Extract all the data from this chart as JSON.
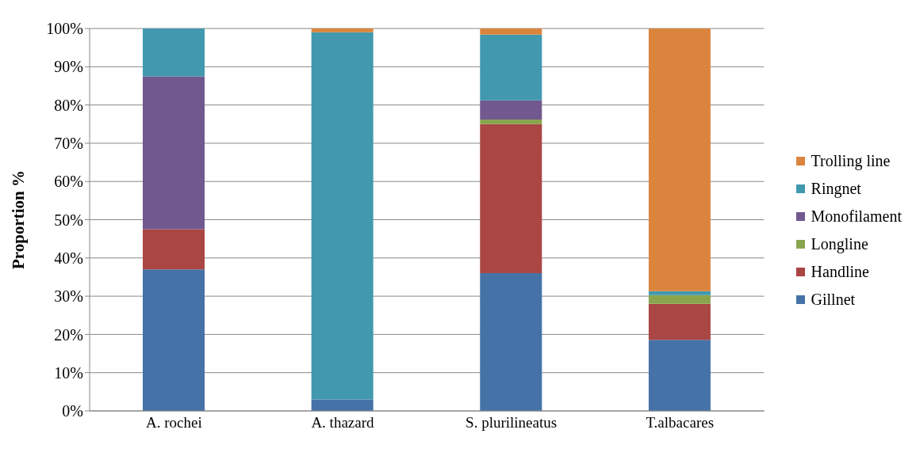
{
  "chart_data": {
    "type": "bar",
    "stacked": true,
    "ylabel": "Proportion %",
    "categories": [
      "A. rochei",
      "A. thazard",
      "S. plurilineatus",
      "T.albacares"
    ],
    "series": [
      {
        "name": "Gillnet",
        "color": "#4572a7",
        "values": [
          37,
          3,
          36,
          18.6
        ]
      },
      {
        "name": "Handline",
        "color": "#aa4643",
        "values": [
          10.5,
          0,
          39,
          9.4
        ]
      },
      {
        "name": "Longline",
        "color": "#89a54e",
        "values": [
          0,
          0,
          1.2,
          2.3
        ]
      },
      {
        "name": "Monofilament",
        "color": "#71588f",
        "values": [
          40,
          0,
          5,
          0
        ]
      },
      {
        "name": "Ringnet",
        "color": "#4198af",
        "values": [
          12.5,
          96,
          17.2,
          1
        ]
      },
      {
        "name": "Trolling line",
        "color": "#db843d",
        "values": [
          0,
          1,
          1.6,
          68.7
        ]
      }
    ],
    "ylim": [
      0,
      100
    ],
    "yticks": [
      {
        "value": 0,
        "label": "0%"
      },
      {
        "value": 10,
        "label": "10%"
      },
      {
        "value": 20,
        "label": "20%"
      },
      {
        "value": 30,
        "label": "30%"
      },
      {
        "value": 40,
        "label": "40%"
      },
      {
        "value": 50,
        "label": "50%"
      },
      {
        "value": 60,
        "label": "60%"
      },
      {
        "value": 70,
        "label": "70%"
      },
      {
        "value": 80,
        "label": "80%"
      },
      {
        "value": 90,
        "label": "90%"
      },
      {
        "value": 100,
        "label": "100%"
      }
    ],
    "grid": "y",
    "legend": "right"
  }
}
